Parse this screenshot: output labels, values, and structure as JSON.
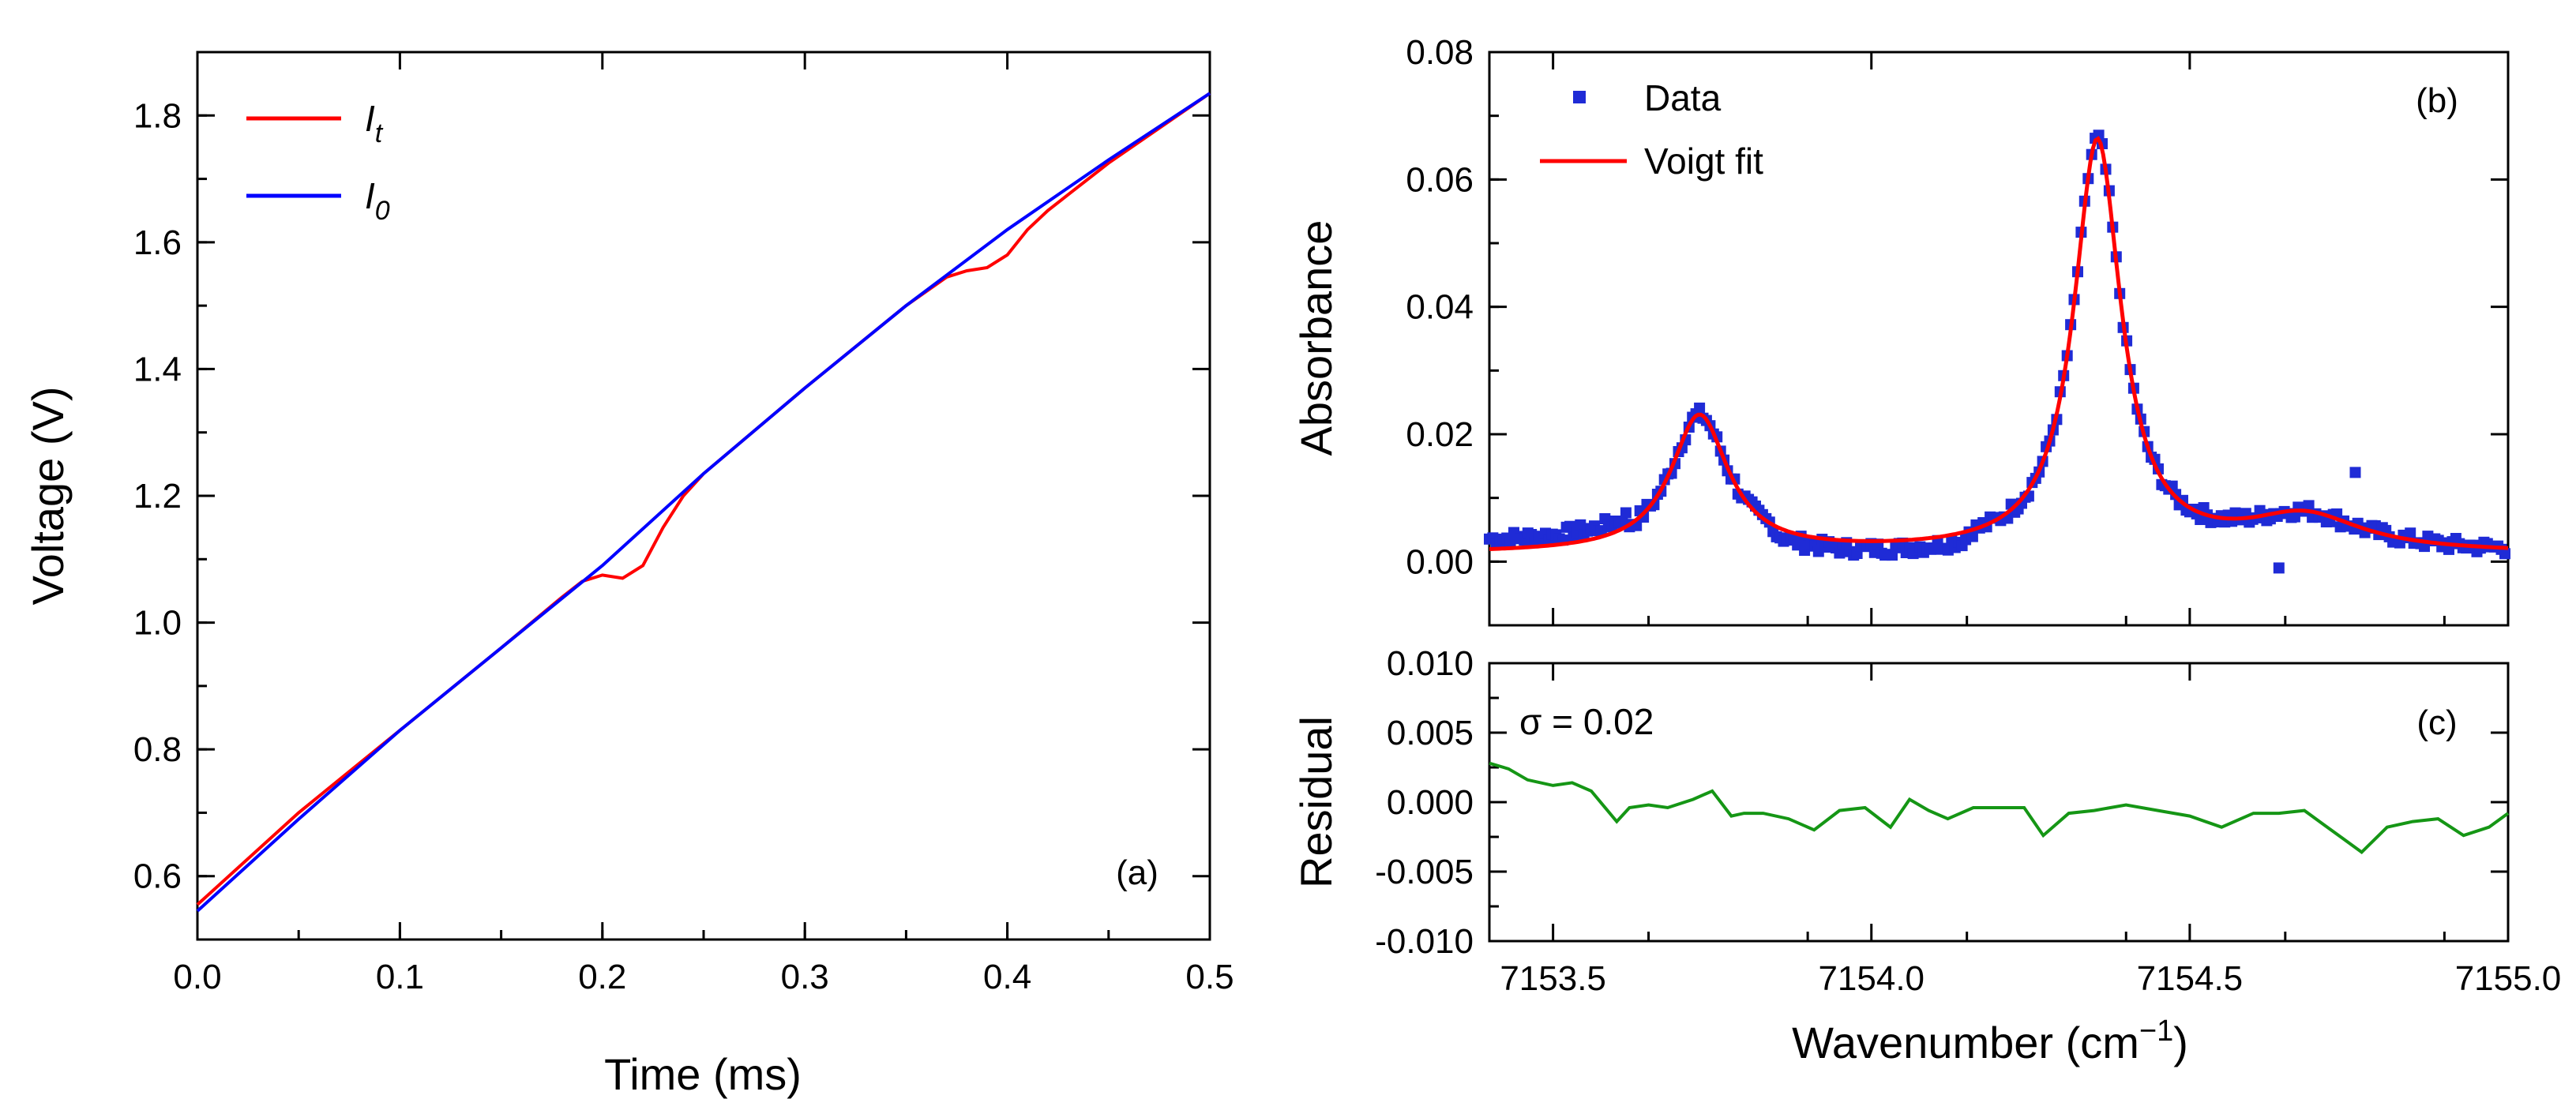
{
  "figure": {
    "panel_a_tag": "(a)",
    "panel_b_tag": "(b)",
    "panel_c_tag": "(c)",
    "sigma_annotation": "σ = 0.02"
  },
  "colors": {
    "red": "#ff0000",
    "blue": "#0000ff",
    "data_blue": "#1f2bd6",
    "green": "#159615"
  },
  "chart_data": [
    {
      "id": "a",
      "type": "line",
      "title": "",
      "xlabel": "Time (ms)",
      "ylabel": "Voltage (V)",
      "xlim": [
        0.0,
        0.5
      ],
      "ylim": [
        0.5,
        1.9
      ],
      "xticks": [
        "0.0",
        "0.1",
        "0.2",
        "0.3",
        "0.4",
        "0.5"
      ],
      "xtick_values": [
        0.0,
        0.1,
        0.2,
        0.3,
        0.4,
        0.5
      ],
      "yticks": [
        "0.6",
        "0.8",
        "1.0",
        "1.2",
        "1.4",
        "1.6",
        "1.8"
      ],
      "ytick_values": [
        0.6,
        0.8,
        1.0,
        1.2,
        1.4,
        1.6,
        1.8
      ],
      "legend": {
        "position": "top-left",
        "entries": [
          {
            "symbol": "I",
            "subscript": "t",
            "color": "#ff0000"
          },
          {
            "symbol": "I",
            "subscript": "0",
            "color": "#0000ff"
          }
        ]
      },
      "series": [
        {
          "name": "I_t",
          "color": "#ff0000",
          "x": [
            0.0,
            0.05,
            0.1,
            0.15,
            0.18,
            0.19,
            0.2,
            0.21,
            0.22,
            0.23,
            0.24,
            0.25,
            0.3,
            0.35,
            0.37,
            0.38,
            0.39,
            0.4,
            0.41,
            0.42,
            0.43,
            0.45,
            0.5
          ],
          "y": [
            0.555,
            0.7,
            0.83,
            0.96,
            1.04,
            1.065,
            1.075,
            1.07,
            1.09,
            1.15,
            1.2,
            1.235,
            1.37,
            1.5,
            1.545,
            1.555,
            1.56,
            1.58,
            1.62,
            1.65,
            1.675,
            1.725,
            1.835
          ]
        },
        {
          "name": "I_0",
          "color": "#0000ff",
          "x": [
            0.0,
            0.05,
            0.1,
            0.15,
            0.2,
            0.25,
            0.3,
            0.35,
            0.4,
            0.45,
            0.5
          ],
          "y": [
            0.545,
            0.69,
            0.83,
            0.96,
            1.09,
            1.235,
            1.37,
            1.5,
            1.62,
            1.73,
            1.835
          ]
        }
      ]
    },
    {
      "id": "b",
      "type": "scatter",
      "title": "",
      "xlabel": "Wavenumber (cm",
      "xlabel_sup": "−1",
      "xlabel_end": ")",
      "ylabel": "Absorbance",
      "xlim": [
        7153.4,
        7155.0
      ],
      "ylim": [
        -0.01,
        0.08
      ],
      "yticks": [
        "0.00",
        "0.02",
        "0.04",
        "0.06",
        "0.08"
      ],
      "ytick_values": [
        0.0,
        0.02,
        0.04,
        0.06,
        0.08
      ],
      "xtick_values": [
        7153.5,
        7154.0,
        7154.5,
        7155.0
      ],
      "legend": {
        "position": "top-left",
        "entries": [
          {
            "label": "Data",
            "color": "#1f2bd6",
            "marker": "square"
          },
          {
            "label": "Voigt fit",
            "color": "#ff0000",
            "marker": "line"
          }
        ]
      },
      "fit_peaks": [
        {
          "center": 7153.73,
          "amplitude": 0.0215,
          "width": 0.055
        },
        {
          "center": 7154.355,
          "amplitude": 0.0645,
          "width": 0.045
        },
        {
          "center": 7154.68,
          "amplitude": 0.0055,
          "width": 0.11
        }
      ],
      "baseline": 0.0012,
      "data_noise_amplitude": 0.0022,
      "outliers": [
        {
          "x": 7154.76,
          "y": 0.014
        },
        {
          "x": 7154.64,
          "y": -0.001
        }
      ]
    },
    {
      "id": "c",
      "type": "line",
      "title": "",
      "xlabel": "",
      "ylabel": "Residual",
      "xlim": [
        7153.4,
        7155.0
      ],
      "ylim": [
        -0.01,
        0.01
      ],
      "xticks": [
        "7153.5",
        "7154.0",
        "7154.5",
        "7155.0"
      ],
      "xtick_values": [
        7153.5,
        7154.0,
        7154.5,
        7155.0
      ],
      "yticks": [
        "0.010",
        "0.005",
        "0.000",
        "-0.005",
        "-0.010"
      ],
      "ytick_values": [
        0.01,
        0.005,
        0.0,
        -0.005,
        -0.01
      ],
      "series": [
        {
          "name": "Residual",
          "color": "#159615",
          "x": [
            7153.4,
            7153.43,
            7153.46,
            7153.5,
            7153.53,
            7153.56,
            7153.6,
            7153.62,
            7153.65,
            7153.68,
            7153.72,
            7153.75,
            7153.78,
            7153.8,
            7153.83,
            7153.87,
            7153.91,
            7153.95,
            7153.99,
            7154.03,
            7154.06,
            7154.09,
            7154.12,
            7154.16,
            7154.2,
            7154.24,
            7154.27,
            7154.31,
            7154.35,
            7154.4,
            7154.45,
            7154.5,
            7154.55,
            7154.6,
            7154.64,
            7154.68,
            7154.71,
            7154.74,
            7154.77,
            7154.81,
            7154.85,
            7154.89,
            7154.93,
            7154.97,
            7155.0
          ],
          "y": [
            0.0028,
            0.0024,
            0.0016,
            0.0012,
            0.0014,
            0.0008,
            -0.0014,
            -0.0004,
            -0.0002,
            -0.0004,
            0.0002,
            0.0008,
            -0.001,
            -0.0008,
            -0.0008,
            -0.0012,
            -0.002,
            -0.0006,
            -0.0004,
            -0.0018,
            0.0002,
            -0.0006,
            -0.0012,
            -0.0004,
            -0.0004,
            -0.0004,
            -0.0024,
            -0.0008,
            -0.0006,
            -0.0002,
            -0.0006,
            -0.001,
            -0.0018,
            -0.0008,
            -0.0008,
            -0.0006,
            -0.0016,
            -0.0026,
            -0.0036,
            -0.0018,
            -0.0014,
            -0.0012,
            -0.0024,
            -0.0018,
            -0.0008
          ]
        }
      ]
    }
  ]
}
